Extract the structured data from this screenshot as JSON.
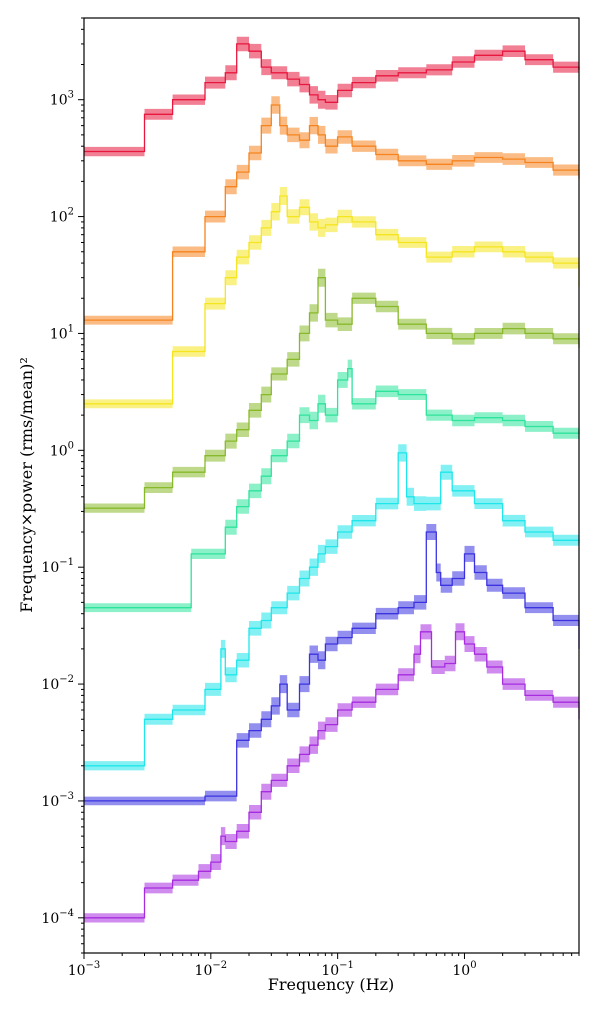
{
  "chart_data": {
    "type": "line",
    "title": "",
    "xlabel": "Frequency (Hz)",
    "ylabel": "Frequency×power (rms/mean)²",
    "x_scale": "log",
    "y_scale": "log",
    "xlim": [
      0.001,
      8
    ],
    "ylim": [
      5e-05,
      5000
    ],
    "x_ticks": [
      {
        "value": 0.001,
        "label_base": "10",
        "label_exp": "−3"
      },
      {
        "value": 0.01,
        "label_base": "10",
        "label_exp": "−2"
      },
      {
        "value": 0.1,
        "label_base": "10",
        "label_exp": "−1"
      },
      {
        "value": 1,
        "label_base": "10",
        "label_exp": "0"
      }
    ],
    "y_ticks": [
      {
        "value": 0.0001,
        "label_base": "10",
        "label_exp": "−4"
      },
      {
        "value": 0.001,
        "label_base": "10",
        "label_exp": "−3"
      },
      {
        "value": 0.01,
        "label_base": "10",
        "label_exp": "−2"
      },
      {
        "value": 0.1,
        "label_base": "10",
        "label_exp": "−1"
      },
      {
        "value": 1,
        "label_base": "10",
        "label_exp": "0"
      },
      {
        "value": 10,
        "label_base": "10",
        "label_exp": "1"
      },
      {
        "value": 100,
        "label_base": "10",
        "label_exp": "2"
      },
      {
        "value": 1000,
        "label_base": "10",
        "label_exp": "3"
      }
    ],
    "grid": false,
    "legend": "none",
    "series": [
      {
        "color": "#e8173e",
        "x": [
          0.001,
          0.003,
          0.005,
          0.009,
          0.013,
          0.016,
          0.02,
          0.025,
          0.03,
          0.04,
          0.05,
          0.06,
          0.07,
          0.08,
          0.1,
          0.13,
          0.2,
          0.3,
          0.5,
          0.8,
          1.2,
          2,
          3,
          5,
          8
        ],
        "y": [
          360,
          750,
          1000,
          1400,
          1700,
          3000,
          2600,
          1900,
          1700,
          1500,
          1350,
          1100,
          1000,
          950,
          1200,
          1400,
          1600,
          1700,
          1800,
          2100,
          2400,
          2600,
          2200,
          1900,
          1800
        ]
      },
      {
        "color": "#f5841f",
        "x": [
          0.001,
          0.005,
          0.009,
          0.013,
          0.016,
          0.02,
          0.025,
          0.03,
          0.035,
          0.04,
          0.05,
          0.06,
          0.07,
          0.08,
          0.1,
          0.13,
          0.2,
          0.3,
          0.5,
          0.8,
          1.2,
          2,
          3,
          5,
          8
        ],
        "y": [
          13,
          50,
          100,
          180,
          240,
          350,
          600,
          900,
          600,
          500,
          450,
          600,
          500,
          400,
          480,
          400,
          340,
          300,
          280,
          300,
          320,
          310,
          290,
          250,
          210
        ]
      },
      {
        "color": "#f5e51f",
        "x": [
          0.001,
          0.005,
          0.009,
          0.013,
          0.016,
          0.02,
          0.025,
          0.03,
          0.035,
          0.04,
          0.05,
          0.06,
          0.07,
          0.08,
          0.1,
          0.13,
          0.2,
          0.3,
          0.5,
          0.8,
          1.2,
          2,
          3,
          5,
          8
        ],
        "y": [
          2.5,
          7,
          18,
          30,
          45,
          60,
          80,
          110,
          150,
          100,
          120,
          90,
          80,
          85,
          100,
          90,
          70,
          60,
          45,
          50,
          55,
          50,
          45,
          40,
          25
        ]
      },
      {
        "color": "#88b92a",
        "x": [
          0.001,
          0.003,
          0.005,
          0.009,
          0.013,
          0.016,
          0.02,
          0.025,
          0.03,
          0.04,
          0.05,
          0.06,
          0.07,
          0.08,
          0.1,
          0.13,
          0.2,
          0.3,
          0.5,
          0.8,
          1.2,
          2,
          3,
          5,
          8
        ],
        "y": [
          0.32,
          0.48,
          0.65,
          0.9,
          1.2,
          1.5,
          2.2,
          3,
          4.5,
          6,
          10,
          15,
          30,
          13,
          12,
          20,
          17,
          12,
          10,
          9,
          10,
          11,
          10,
          9,
          7.5
        ]
      },
      {
        "color": "#2ee39c",
        "x": [
          0.001,
          0.007,
          0.013,
          0.016,
          0.02,
          0.025,
          0.03,
          0.04,
          0.05,
          0.06,
          0.07,
          0.08,
          0.1,
          0.12,
          0.13,
          0.2,
          0.3,
          0.5,
          0.8,
          1.2,
          2,
          3,
          5,
          8
        ],
        "y": [
          0.045,
          0.13,
          0.22,
          0.33,
          0.45,
          0.6,
          0.9,
          1.2,
          2,
          1.8,
          2.5,
          2,
          4,
          5,
          2.5,
          3.2,
          3,
          2,
          1.8,
          1.9,
          1.8,
          1.6,
          1.4,
          1.5
        ]
      },
      {
        "color": "#1ee6ea",
        "x": [
          0.001,
          0.003,
          0.005,
          0.009,
          0.012,
          0.013,
          0.016,
          0.02,
          0.025,
          0.03,
          0.04,
          0.05,
          0.06,
          0.07,
          0.08,
          0.1,
          0.13,
          0.2,
          0.3,
          0.35,
          0.4,
          0.5,
          0.65,
          0.8,
          1.2,
          2,
          3,
          5,
          8
        ],
        "y": [
          0.002,
          0.005,
          0.006,
          0.009,
          0.02,
          0.012,
          0.016,
          0.03,
          0.035,
          0.045,
          0.06,
          0.08,
          0.1,
          0.13,
          0.15,
          0.2,
          0.25,
          0.35,
          0.95,
          0.4,
          0.35,
          0.35,
          0.65,
          0.45,
          0.35,
          0.25,
          0.2,
          0.17,
          0.16
        ]
      },
      {
        "color": "#3b33e0",
        "x": [
          0.001,
          0.009,
          0.016,
          0.02,
          0.025,
          0.03,
          0.035,
          0.04,
          0.05,
          0.06,
          0.07,
          0.08,
          0.1,
          0.13,
          0.2,
          0.3,
          0.4,
          0.5,
          0.6,
          0.65,
          0.8,
          1.0,
          1.2,
          1.5,
          2,
          3,
          5,
          8
        ],
        "y": [
          0.001,
          0.0011,
          0.0033,
          0.004,
          0.005,
          0.0065,
          0.01,
          0.006,
          0.01,
          0.018,
          0.016,
          0.022,
          0.025,
          0.03,
          0.04,
          0.045,
          0.05,
          0.2,
          0.09,
          0.07,
          0.08,
          0.13,
          0.09,
          0.07,
          0.06,
          0.045,
          0.035,
          0.02
        ]
      },
      {
        "color": "#a72ce0",
        "x": [
          0.001,
          0.003,
          0.005,
          0.008,
          0.01,
          0.012,
          0.013,
          0.016,
          0.02,
          0.025,
          0.03,
          0.04,
          0.05,
          0.06,
          0.07,
          0.08,
          0.1,
          0.13,
          0.2,
          0.3,
          0.4,
          0.45,
          0.55,
          0.7,
          0.85,
          1.0,
          1.2,
          1.5,
          2,
          3,
          5,
          8
        ],
        "y": [
          0.0001,
          0.00018,
          0.00021,
          0.00025,
          0.0003,
          0.0005,
          0.00045,
          0.00055,
          0.0008,
          0.0012,
          0.0015,
          0.002,
          0.0025,
          0.003,
          0.004,
          0.0045,
          0.006,
          0.007,
          0.009,
          0.012,
          0.018,
          0.028,
          0.014,
          0.015,
          0.028,
          0.022,
          0.018,
          0.014,
          0.01,
          0.008,
          0.007,
          0.005
        ]
      }
    ]
  }
}
